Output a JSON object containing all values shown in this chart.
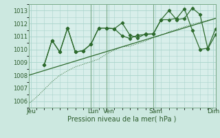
{
  "bg_color": "#cce8e0",
  "plot_bg": "#d8eeea",
  "grid_color": "#aad4cc",
  "vline_color": "#7aaa8a",
  "line_color": "#2d6a2d",
  "xlim": [
    0,
    24
  ],
  "ylim": [
    1005.5,
    1013.5
  ],
  "ytick_positions": [
    1006,
    1007,
    1008,
    1009,
    1010,
    1011,
    1012,
    1013
  ],
  "xtick_positions": [
    0.3,
    8.3,
    10.3,
    16.3,
    23.7
  ],
  "xtick_labels": [
    "Jeu",
    "Lun",
    "Ven",
    "Sam",
    "Dim"
  ],
  "xlabel": "Pression niveau de la mer( hPa )",
  "vlines": [
    8,
    10,
    16,
    24
  ],
  "series_dot_x": [
    0,
    1,
    2,
    3,
    4,
    5,
    6,
    7,
    8,
    9,
    10,
    11,
    12,
    13,
    14,
    15,
    16,
    17,
    18,
    19,
    20,
    21,
    22,
    23,
    24
  ],
  "series_dot_y": [
    1005.8,
    1006.3,
    1006.9,
    1007.5,
    1008.0,
    1008.35,
    1008.65,
    1008.85,
    1009.05,
    1009.25,
    1009.65,
    1009.95,
    1010.2,
    1010.25,
    1010.45,
    1010.65,
    1010.9,
    1011.1,
    1011.35,
    1011.55,
    1011.75,
    1011.95,
    1012.1,
    1012.25,
    1012.4
  ],
  "series_trend_x": [
    0,
    24
  ],
  "series_trend_y": [
    1008.0,
    1012.4
  ],
  "series_A_x": [
    2,
    3,
    4,
    5,
    6,
    7,
    8,
    9,
    10,
    11,
    12,
    13,
    14,
    15,
    16,
    17,
    18,
    19,
    20,
    21,
    22,
    23,
    24
  ],
  "series_A_y": [
    1008.8,
    1010.7,
    1009.8,
    1011.65,
    1009.8,
    1009.9,
    1010.4,
    1011.65,
    1011.65,
    1011.6,
    1012.05,
    1011.1,
    1010.9,
    1011.2,
    1011.2,
    1012.3,
    1013.0,
    1012.3,
    1012.4,
    1013.2,
    1012.7,
    1010.05,
    1011.15
  ],
  "series_B_x": [
    2,
    3,
    4,
    5,
    6,
    7,
    8,
    9,
    10,
    11,
    12,
    13,
    14,
    15,
    16,
    17,
    18,
    19,
    20,
    21,
    22,
    23,
    24
  ],
  "series_B_y": [
    1008.8,
    1010.7,
    1009.8,
    1011.65,
    1009.8,
    1009.9,
    1010.4,
    1011.65,
    1011.65,
    1011.6,
    1011.05,
    1010.85,
    1011.1,
    1011.15,
    1011.2,
    1012.3,
    1012.3,
    1012.4,
    1013.15,
    1011.5,
    1010.0,
    1010.1,
    1011.6
  ]
}
